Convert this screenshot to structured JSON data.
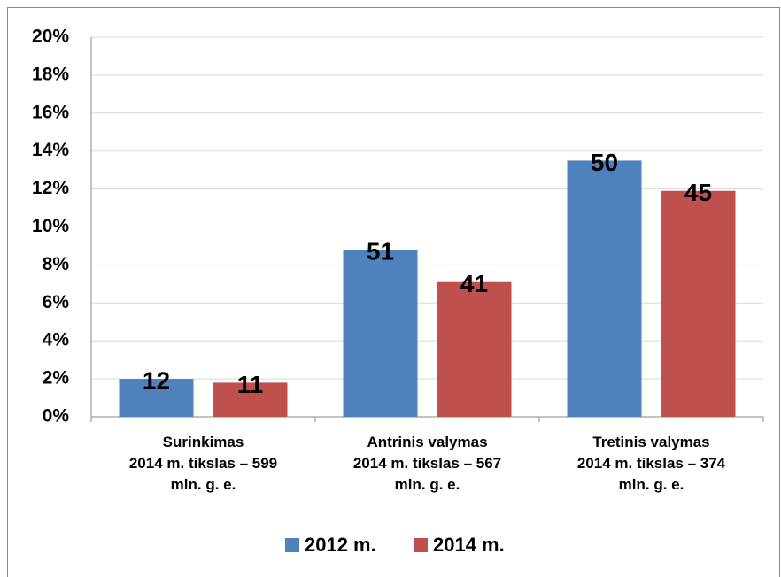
{
  "chart_data": {
    "type": "bar",
    "categories": [
      "Surinkimas\n2014 m. tikslas – 599\nmln. g. e.",
      "Antrinis valymas\n2014 m. tikslas – 567\nmln. g. e.",
      "Tretinis valymas\n2014 m. tikslas – 374\nmln. g. e."
    ],
    "series": [
      {
        "name": "2012 m.",
        "color": "#4f81bd",
        "values": [
          2.0,
          8.8,
          13.5
        ],
        "point_labels": [
          12,
          51,
          50
        ]
      },
      {
        "name": "2014 m.",
        "color": "#c0504d",
        "values": [
          1.8,
          7.1,
          11.9
        ],
        "point_labels": [
          11,
          41,
          45
        ]
      }
    ],
    "ylim": [
      0,
      20
    ],
    "yticks": [
      {
        "value": 0,
        "label": "0%"
      },
      {
        "value": 2,
        "label": "2%"
      },
      {
        "value": 4,
        "label": "4%"
      },
      {
        "value": 6,
        "label": "6%"
      },
      {
        "value": 8,
        "label": "8%"
      },
      {
        "value": 10,
        "label": "10%"
      },
      {
        "value": 12,
        "label": "12%"
      },
      {
        "value": 14,
        "label": "14%"
      },
      {
        "value": 16,
        "label": "16%"
      },
      {
        "value": 18,
        "label": "18%"
      },
      {
        "value": 20,
        "label": "20%"
      }
    ],
    "grid": true,
    "legend": "bottom"
  }
}
